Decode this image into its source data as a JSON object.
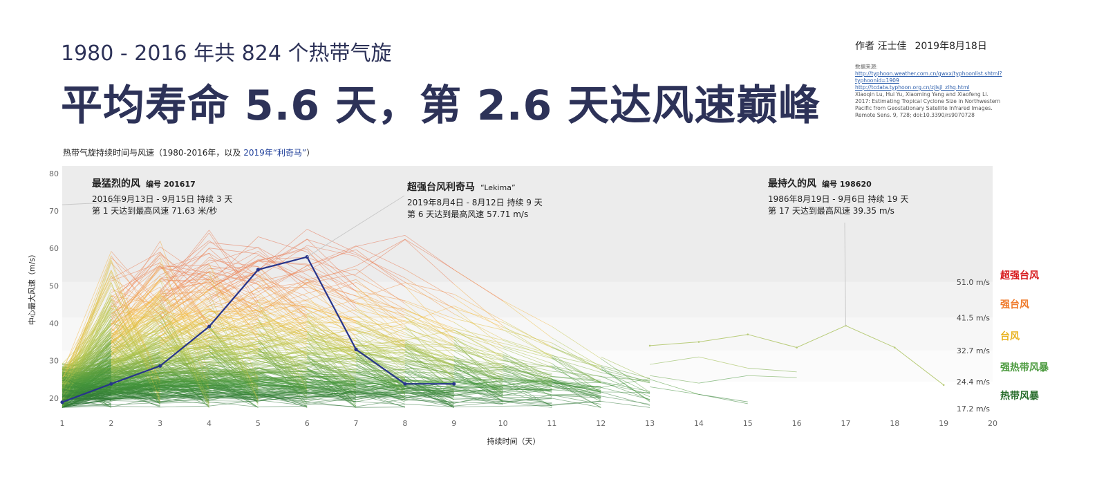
{
  "header": {
    "subtitle": "1980 - 2016 年共 824 个热带气旋",
    "headline": "平均寿命 5.6 天，第 2.6 天达风速巅峰",
    "author": "作者 汪士佳",
    "date": "2019年8月18日"
  },
  "sources": {
    "heading": "数据来源:",
    "link1": "http://typhoon.weather.com.cn/gwxx/typhoonlist.shtml?typhoonid=1909",
    "link2": "http://tcdata.typhoon.org.cn/zjlsjl_zlhq.html",
    "citation": "Xiaoqin Lu, Hui Yu, Xiaoming Yang and Xiaofeng Li. 2017: Estimating Tropical Cyclone Size in Northwestern Pacific from Geostationary Satellite Infrared Images. Remote Sens. 9, 728; doi:10.3390/rs9070728"
  },
  "chart_caption": {
    "prefix": "热带气旋持续时间与风速（1980-2016年，以及 ",
    "highlight": "2019年“利奇马”",
    "suffix": "）"
  },
  "chart_data": {
    "type": "line",
    "xlabel": "持续时间（天）",
    "ylabel": "中心最大风速（m/s）",
    "xlim": [
      1,
      20
    ],
    "ylim": [
      17,
      82
    ],
    "x_ticks": [
      1,
      2,
      3,
      4,
      5,
      6,
      7,
      8,
      9,
      10,
      11,
      12,
      13,
      14,
      15,
      16,
      17,
      18,
      19,
      20
    ],
    "y_ticks": [
      20,
      30,
      40,
      50,
      60,
      70,
      80
    ],
    "grid": false,
    "bands": [
      {
        "label": "超强台风",
        "threshold": "51.0 m/s",
        "min": 51.0,
        "max": 82,
        "color": "#d7191c",
        "fill": "#ececec"
      },
      {
        "label": "强台风",
        "threshold": "41.5 m/s",
        "min": 41.5,
        "max": 51.0,
        "color": "#ef7a2b",
        "fill": "#f2f2f2"
      },
      {
        "label": "台风",
        "threshold": "32.7 m/s",
        "min": 32.7,
        "max": 41.5,
        "color": "#e9b321",
        "fill": "#f7f7f7"
      },
      {
        "label": "强热带风暴",
        "threshold": "24.4 m/s",
        "min": 24.4,
        "max": 32.7,
        "color": "#4b9a3e",
        "fill": "#fbfbfb"
      },
      {
        "label": "热带风暴",
        "threshold": "17.2 m/s",
        "min": 17.2,
        "max": 24.4,
        "color": "#2a6e2e",
        "fill": "#ffffff"
      }
    ],
    "highlight_series": {
      "name": "利奇马",
      "x": [
        1,
        2,
        3,
        4,
        5,
        6,
        7,
        8,
        9
      ],
      "y": [
        18.9,
        23.8,
        28.6,
        39.1,
        54.3,
        57.7,
        33.0,
        23.8,
        23.8
      ],
      "color": "#27348b"
    },
    "longest_series": {
      "x": [
        13,
        14,
        15,
        16,
        17,
        18,
        19
      ],
      "y": [
        34.0,
        35.0,
        37.0,
        33.5,
        39.35,
        33.5,
        23.5
      ]
    },
    "annotations": [
      {
        "title": "最猛烈的风",
        "code": "编号 201617",
        "line1": "2016年9月13日 - 9月15日 持续 3 天",
        "line2": "第 1 天达到最高风速 71.63 米/秒",
        "point": [
          1,
          71.63
        ]
      },
      {
        "title": "超强台风利奇马",
        "code": "“Lekima”",
        "line1": "2019年8月4日 - 8月12日 持续 9 天",
        "line2": "第 6 天达到最高风速 57.71 m/s",
        "point": [
          6,
          57.71
        ]
      },
      {
        "title": "最持久的风",
        "code": "编号 198620",
        "line1": "1986年8月19日 - 9月6日 持续 19 天",
        "line2": "第 17 天达到最高风速 39.35 m/s",
        "point": [
          17,
          39.35
        ]
      }
    ]
  }
}
